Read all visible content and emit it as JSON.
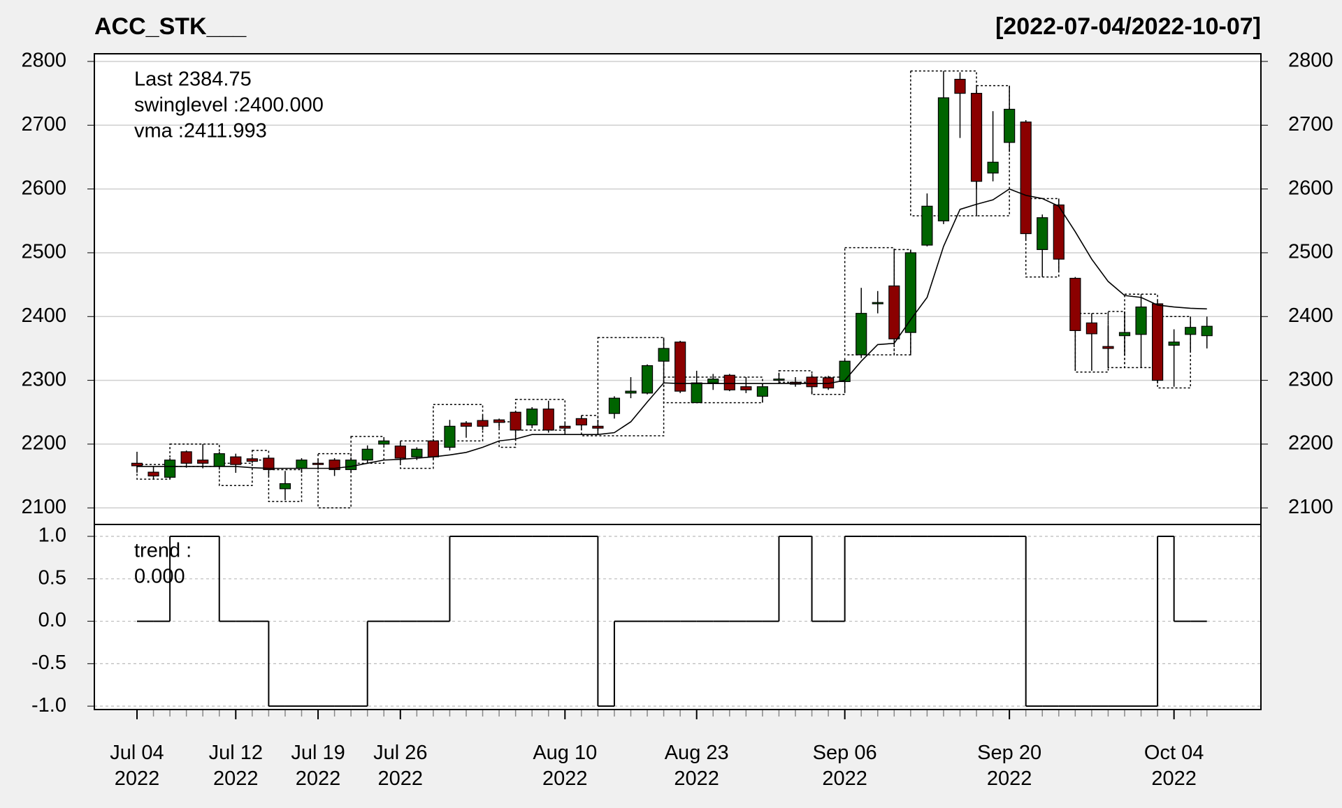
{
  "chart_data": [
    {
      "type": "candlestick",
      "title": "ACC_STK___",
      "subtitle": "[2022-07-04/2022-10-07]",
      "categories": [
        "Jul 04\n2022",
        null,
        null,
        null,
        null,
        null,
        "Jul 12\n2022",
        null,
        null,
        null,
        null,
        "Jul 19\n2022",
        null,
        null,
        null,
        null,
        "Jul 26\n2022",
        null,
        null,
        null,
        null,
        null,
        null,
        null,
        null,
        null,
        "Aug 10\n2022",
        null,
        null,
        null,
        null,
        null,
        null,
        null,
        "Aug 23\n2022",
        null,
        null,
        null,
        null,
        null,
        null,
        null,
        null,
        "Sep 06\n2022",
        null,
        null,
        null,
        null,
        null,
        null,
        null,
        null,
        null,
        "Sep 20\n2022",
        null,
        null,
        null,
        null,
        null,
        null,
        null,
        null,
        null,
        "Oct 04\n2022",
        null,
        null
      ],
      "series": {
        "open": [
          2170,
          2156,
          2148,
          2188,
          2175,
          2165,
          2180,
          2177,
          2178,
          2130,
          2162,
          2170,
          2175,
          2160,
          2175,
          2200,
          2197,
          2180,
          2205,
          2195,
          2233,
          2237,
          2238,
          2250,
          2230,
          2255,
          2228,
          2240,
          2228,
          2248,
          2280,
          2280,
          2330,
          2360,
          2265,
          2296,
          2308,
          2290,
          2275,
          2300,
          2297,
          2305,
          2304,
          2298,
          2340,
          2420,
          2448,
          2375,
          2512,
          2550,
          2772,
          2750,
          2625,
          2673,
          2705,
          2505,
          2575,
          2460,
          2390,
          2353,
          2370,
          2372,
          2420,
          2355,
          2372,
          2370
        ],
        "high": [
          2188,
          2165,
          2178,
          2190,
          2200,
          2188,
          2185,
          2180,
          2182,
          2158,
          2178,
          2176,
          2178,
          2178,
          2198,
          2210,
          2205,
          2195,
          2208,
          2238,
          2236,
          2245,
          2240,
          2252,
          2258,
          2268,
          2235,
          2245,
          2238,
          2275,
          2305,
          2325,
          2367,
          2362,
          2315,
          2310,
          2310,
          2305,
          2295,
          2312,
          2305,
          2310,
          2307,
          2335,
          2445,
          2440,
          2505,
          2505,
          2593,
          2785,
          2783,
          2755,
          2722,
          2762,
          2708,
          2560,
          2585,
          2462,
          2405,
          2385,
          2408,
          2435,
          2425,
          2380,
          2400,
          2400
        ],
        "low": [
          2155,
          2145,
          2145,
          2163,
          2162,
          2160,
          2155,
          2170,
          2150,
          2112,
          2155,
          2160,
          2150,
          2155,
          2170,
          2198,
          2170,
          2175,
          2177,
          2190,
          2210,
          2222,
          2225,
          2205,
          2225,
          2218,
          2215,
          2222,
          2215,
          2240,
          2272,
          2278,
          2295,
          2280,
          2265,
          2285,
          2283,
          2280,
          2265,
          2295,
          2290,
          2278,
          2285,
          2280,
          2335,
          2405,
          2355,
          2340,
          2510,
          2545,
          2680,
          2600,
          2612,
          2658,
          2520,
          2462,
          2470,
          2315,
          2315,
          2320,
          2340,
          2320,
          2295,
          2290,
          2345,
          2350
        ],
        "close": [
          2166,
          2150,
          2175,
          2170,
          2170,
          2185,
          2168,
          2173,
          2160,
          2138,
          2175,
          2168,
          2160,
          2175,
          2192,
          2205,
          2178,
          2192,
          2180,
          2228,
          2228,
          2228,
          2234,
          2222,
          2255,
          2222,
          2225,
          2230,
          2225,
          2272,
          2283,
          2323,
          2350,
          2283,
          2296,
          2302,
          2285,
          2285,
          2290,
          2302,
          2294,
          2290,
          2288,
          2330,
          2405,
          2422,
          2365,
          2500,
          2573,
          2743,
          2750,
          2612,
          2642,
          2725,
          2530,
          2555,
          2490,
          2378,
          2373,
          2350,
          2375,
          2415,
          2300,
          2360,
          2383,
          2384.75
        ]
      },
      "up_color": "#006400",
      "down_color": "#8b0000",
      "vma": {
        "name": "vma",
        "color": "#000000",
        "values": [
          2165,
          2165,
          2165,
          2165,
          2165,
          2165,
          2165,
          2163,
          2162,
          2162,
          2162,
          2162,
          2162,
          2165,
          2170,
          2175,
          2176,
          2178,
          2180,
          2183,
          2187,
          2195,
          2205,
          2208,
          2215,
          2215,
          2215,
          2215,
          2215,
          2218,
          2235,
          2266,
          2296,
          2295,
          2295,
          2295,
          2295,
          2295,
          2295,
          2295,
          2295,
          2295,
          2295,
          2300,
          2330,
          2356,
          2358,
          2395,
          2430,
          2510,
          2568,
          2576,
          2583,
          2600,
          2590,
          2585,
          2573,
          2533,
          2490,
          2455,
          2433,
          2430,
          2418,
          2415,
          2413,
          2412
        ]
      },
      "swing_boxes": [
        [
          0,
          2,
          2145,
          2168
        ],
        [
          2,
          5,
          2165,
          2200
        ],
        [
          5,
          7,
          2135,
          2170
        ],
        [
          7,
          8,
          2175,
          2190
        ],
        [
          8,
          10,
          2110,
          2160
        ],
        [
          11,
          13,
          2100,
          2185
        ],
        [
          13,
          15,
          2170,
          2212
        ],
        [
          16,
          18,
          2162,
          2205
        ],
        [
          18,
          21,
          2205,
          2262
        ],
        [
          22,
          23,
          2195,
          2235
        ],
        [
          23,
          26,
          2222,
          2270
        ],
        [
          27,
          28,
          2213,
          2245
        ],
        [
          28,
          32,
          2213,
          2367
        ],
        [
          32,
          38,
          2265,
          2305
        ],
        [
          39,
          41,
          2297,
          2315
        ],
        [
          41,
          43,
          2278,
          2305
        ],
        [
          43,
          46,
          2340,
          2508
        ],
        [
          46,
          47,
          2340,
          2505
        ],
        [
          47,
          51,
          2558,
          2785
        ],
        [
          51,
          53,
          2558,
          2762
        ],
        [
          54,
          56,
          2462,
          2585
        ],
        [
          57,
          59,
          2313,
          2405
        ],
        [
          59,
          60,
          2320,
          2408
        ],
        [
          60,
          62,
          2320,
          2435
        ],
        [
          62,
          64,
          2288,
          2400
        ]
      ],
      "legend": {
        "last": "Last 2384.75",
        "last_color": "#006400",
        "swinglevel": "swinglevel :2400.000",
        "vma": "vma :2411.993"
      },
      "ylim": [
        2074,
        2812
      ],
      "yticks": [
        2100,
        2200,
        2300,
        2400,
        2500,
        2600,
        2700,
        2800
      ],
      "grid": true
    },
    {
      "type": "step",
      "values": [
        0,
        0,
        1,
        1,
        1,
        0,
        0,
        0,
        -1,
        -1,
        -1,
        -1,
        -1,
        -1,
        0,
        0,
        0,
        0,
        0,
        1,
        1,
        1,
        1,
        1,
        1,
        1,
        1,
        1,
        -1,
        0,
        0,
        0,
        0,
        0,
        0,
        0,
        0,
        0,
        0,
        1,
        1,
        0,
        0,
        1,
        1,
        1,
        1,
        1,
        1,
        1,
        1,
        1,
        1,
        1,
        -1,
        -1,
        -1,
        -1,
        -1,
        -1,
        -1,
        -1,
        1,
        0,
        0,
        0
      ],
      "color": "#000000",
      "legend": {
        "name": "trend :",
        "last": "0.000"
      },
      "ylim": [
        -1.04,
        1.14
      ],
      "yticks": [
        {
          "value": -1,
          "label": "-1.0"
        },
        {
          "value": -0.5,
          "label": "-0.5"
        },
        {
          "value": 0,
          "label": "0.0"
        },
        {
          "value": 0.5,
          "label": "0.5"
        },
        {
          "value": 1,
          "label": "1.0"
        }
      ],
      "grid": true
    }
  ]
}
